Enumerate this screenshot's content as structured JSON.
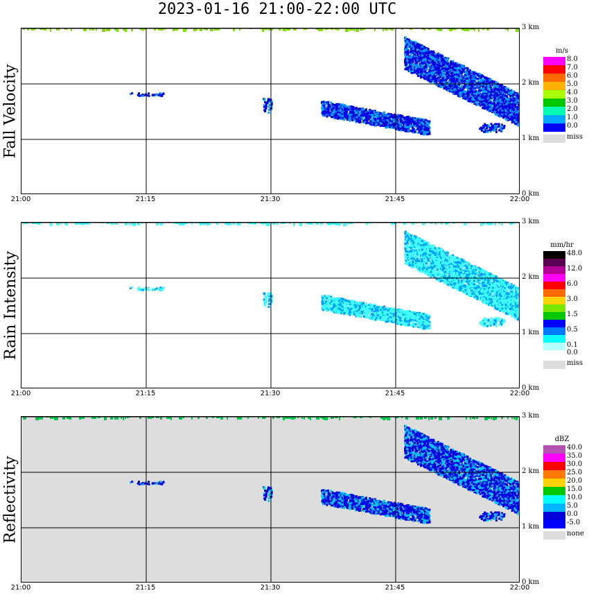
{
  "title": "2023-01-16   21:00-22:00 UTC",
  "x_ticks": [
    "21:00",
    "21:15",
    "21:30",
    "21:45",
    "22:00"
  ],
  "y_ticks": [
    "0 km",
    "1 km",
    "2 km",
    "3 km"
  ],
  "panels": [
    {
      "ylabel": "Fall Velocity",
      "unit": "m/s",
      "legend": [
        {
          "label": "8.0",
          "color": "#ff00ff"
        },
        {
          "label": "7.0",
          "color": "#ff0000"
        },
        {
          "label": "6.0",
          "color": "#ff6a00"
        },
        {
          "label": "5.0",
          "color": "#ffb000"
        },
        {
          "label": "4.0",
          "color": "#a8ff00"
        },
        {
          "label": "3.0",
          "color": "#00c800"
        },
        {
          "label": "2.0",
          "color": "#00ffb4"
        },
        {
          "label": "1.0",
          "color": "#00aaff"
        },
        {
          "label": "0.0",
          "color": "#0000ff"
        }
      ],
      "missing_label": "miss",
      "background": "#ffffff"
    },
    {
      "ylabel": "Rain Intensity",
      "unit": "mm/hr",
      "legend": [
        {
          "label": "48.0",
          "color": "#000000"
        },
        {
          "label": "",
          "color": "#5a0050"
        },
        {
          "label": "12.0",
          "color": "#b40096"
        },
        {
          "label": "",
          "color": "#ff00ff"
        },
        {
          "label": "6.0",
          "color": "#ff0000"
        },
        {
          "label": "",
          "color": "#ff6a00"
        },
        {
          "label": "3.0",
          "color": "#ffd200"
        },
        {
          "label": "",
          "color": "#78e600"
        },
        {
          "label": "1.5",
          "color": "#00c800"
        },
        {
          "label": "",
          "color": "#0000ff"
        },
        {
          "label": "0.5",
          "color": "#0078ff"
        },
        {
          "label": "",
          "color": "#00ffff"
        },
        {
          "label": "0.1",
          "color": "#b4ffff"
        },
        {
          "label": "0.0",
          "color": "#ffffff"
        }
      ],
      "missing_label": "miss",
      "background": "#ffffff"
    },
    {
      "ylabel": "Reflectivity",
      "unit": "dBZ",
      "legend": [
        {
          "label": "40.0",
          "color": "#b450b4"
        },
        {
          "label": "35.0",
          "color": "#ff00ff"
        },
        {
          "label": "30.0",
          "color": "#ff0000"
        },
        {
          "label": "25.0",
          "color": "#ff7800"
        },
        {
          "label": "20.0",
          "color": "#ffd200"
        },
        {
          "label": "15.0",
          "color": "#00c800"
        },
        {
          "label": "10.0",
          "color": "#00ffff"
        },
        {
          "label": "5.0",
          "color": "#00b4ff"
        },
        {
          "label": "0.0",
          "color": "#0000dc"
        },
        {
          "label": "-5.0",
          "color": "#0000ff"
        }
      ],
      "missing_label": "none",
      "background": "#dddddd"
    }
  ],
  "chart_data": {
    "type": "heatmap",
    "title": "2023-01-16   21:00-22:00 UTC",
    "x_range": [
      "21:00",
      "22:00"
    ],
    "y_range_km": [
      0,
      3
    ],
    "colors": {
      "fall_velocity_noise": "#80e000",
      "rain_noise": "#40ffff",
      "reflectivity_noise": "#00c850",
      "echo_dark": "#0000e0",
      "echo_mid": "#00a0ff",
      "rain_light": "#40ffff",
      "rain_mid": "#00a0ff",
      "refl_light": "#00c8ff"
    },
    "echoes": [
      {
        "name": "isolated echoes",
        "time_start": "21:13",
        "time_end": "21:17",
        "alt_km": [
          1.8,
          1.85
        ]
      },
      {
        "name": "small cell",
        "time_start": "21:29",
        "time_end": "21:30",
        "alt_km": [
          1.5,
          1.75
        ]
      },
      {
        "name": "lower fall streak",
        "time_start": "21:36",
        "time_end": "21:49",
        "alt_km": [
          1.1,
          1.7
        ]
      },
      {
        "name": "upper fall streak",
        "time_start": "21:46",
        "time_end": "22:00",
        "alt_km": [
          1.4,
          2.7
        ]
      },
      {
        "name": "small lower patch",
        "time_start": "21:55",
        "time_end": "21:58",
        "alt_km": [
          1.15,
          1.3
        ]
      }
    ]
  }
}
